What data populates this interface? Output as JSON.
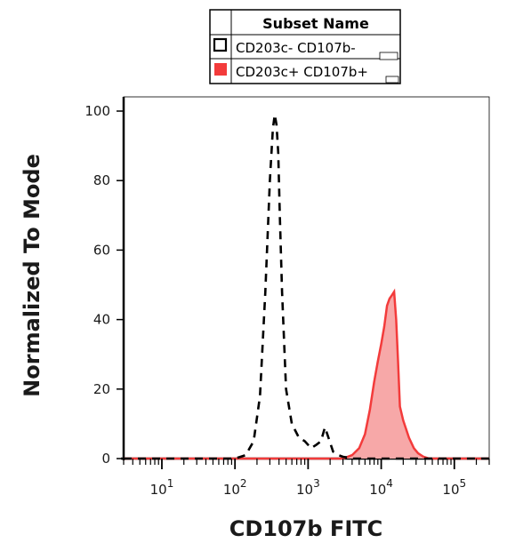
{
  "chart_data": {
    "type": "area",
    "title": "",
    "xlabel": "CD107b FITC",
    "ylabel": "Normalized To Mode",
    "x_scale": "log",
    "xlim": [
      3,
      300000
    ],
    "ylim": [
      0,
      104
    ],
    "y_ticks": [
      "0",
      "20",
      "40",
      "60",
      "80",
      "100"
    ],
    "x_ticks": [
      {
        "base": "10",
        "exp": "1",
        "value": 10
      },
      {
        "base": "10",
        "exp": "2",
        "value": 100
      },
      {
        "base": "10",
        "exp": "3",
        "value": 1000
      },
      {
        "base": "10",
        "exp": "4",
        "value": 10000
      },
      {
        "base": "10",
        "exp": "5",
        "value": 100000
      }
    ],
    "legend": {
      "header": "Subset Name",
      "placement": "top-center",
      "entries": [
        {
          "label": "CD203c- CD107b-",
          "style": "dashed-outline",
          "color": "#000000"
        },
        {
          "label": "CD203c+ CD107b+",
          "style": "filled",
          "color": "#f33b3b"
        }
      ]
    },
    "series": [
      {
        "name": "CD203c- CD107b-",
        "style": "dashed",
        "color": "#000000",
        "x": [
          3,
          100,
          140,
          180,
          220,
          260,
          300,
          330,
          350,
          370,
          390,
          410,
          440,
          500,
          600,
          750,
          900,
          1100,
          1300,
          1500,
          1700,
          1900,
          2200,
          2600,
          3000,
          3500,
          4000,
          300000
        ],
        "y": [
          0,
          0,
          1,
          5,
          18,
          48,
          80,
          95,
          99,
          96,
          88,
          70,
          48,
          20,
          10,
          6,
          5,
          3,
          4,
          5,
          9,
          6,
          2,
          1,
          0.5,
          0.3,
          0,
          0
        ]
      },
      {
        "name": "CD203c+ CD107b+",
        "style": "filled",
        "color": "#f33b3b",
        "fill": "#f7a8a8",
        "x": [
          3,
          3000,
          4000,
          5000,
          6000,
          7000,
          8000,
          9000,
          10000,
          11000,
          12000,
          13000,
          14000,
          15000,
          16000,
          17000,
          18000,
          20000,
          24000,
          28000,
          32000,
          38000,
          45000,
          300000
        ],
        "y": [
          0,
          0,
          1,
          3,
          7,
          14,
          22,
          28,
          33,
          38,
          44,
          46,
          47,
          48,
          40,
          28,
          15,
          11,
          6,
          3,
          1.5,
          0.5,
          0,
          0
        ]
      }
    ]
  }
}
